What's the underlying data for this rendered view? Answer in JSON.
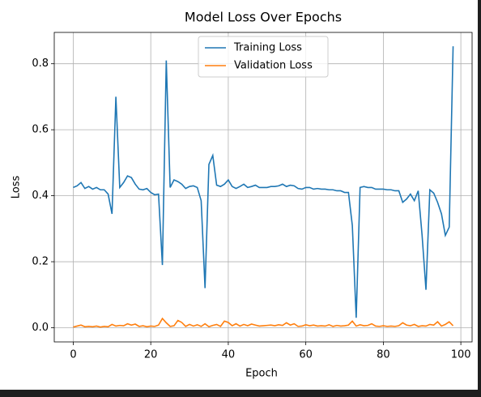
{
  "chart_data": {
    "type": "line",
    "title": "Model Loss Over Epochs",
    "xlabel": "Epoch",
    "ylabel": "Loss",
    "x": [
      0,
      1,
      2,
      3,
      4,
      5,
      6,
      7,
      8,
      9,
      10,
      11,
      12,
      13,
      14,
      15,
      16,
      17,
      18,
      19,
      20,
      21,
      22,
      23,
      24,
      25,
      26,
      27,
      28,
      29,
      30,
      31,
      32,
      33,
      34,
      35,
      36,
      37,
      38,
      39,
      40,
      41,
      42,
      43,
      44,
      45,
      46,
      47,
      48,
      49,
      50,
      51,
      52,
      53,
      54,
      55,
      56,
      57,
      58,
      59,
      60,
      61,
      62,
      63,
      64,
      65,
      66,
      67,
      68,
      69,
      70,
      71,
      72,
      73,
      74,
      75,
      76,
      77,
      78,
      79,
      80,
      81,
      82,
      83,
      84,
      85,
      86,
      87,
      88,
      89,
      90,
      91,
      92,
      93,
      94,
      95,
      96,
      97,
      98
    ],
    "series": [
      {
        "name": "Training Loss",
        "color": "#1f77b4",
        "values": [
          0.425,
          0.43,
          0.44,
          0.422,
          0.428,
          0.42,
          0.425,
          0.418,
          0.418,
          0.405,
          0.345,
          0.7,
          0.425,
          0.44,
          0.46,
          0.455,
          0.435,
          0.42,
          0.418,
          0.422,
          0.41,
          0.403,
          0.405,
          0.19,
          0.81,
          0.425,
          0.448,
          0.443,
          0.435,
          0.422,
          0.428,
          0.43,
          0.425,
          0.385,
          0.12,
          0.495,
          0.522,
          0.432,
          0.428,
          0.435,
          0.448,
          0.428,
          0.422,
          0.428,
          0.435,
          0.425,
          0.428,
          0.432,
          0.425,
          0.425,
          0.425,
          0.428,
          0.428,
          0.43,
          0.435,
          0.428,
          0.432,
          0.43,
          0.422,
          0.42,
          0.425,
          0.425,
          0.42,
          0.422,
          0.42,
          0.42,
          0.418,
          0.418,
          0.415,
          0.415,
          0.41,
          0.41,
          0.31,
          0.03,
          0.425,
          0.428,
          0.425,
          0.425,
          0.42,
          0.42,
          0.42,
          0.418,
          0.418,
          0.415,
          0.415,
          0.38,
          0.39,
          0.405,
          0.385,
          0.415,
          0.28,
          0.115,
          0.418,
          0.408,
          0.38,
          0.345,
          0.28,
          0.305,
          0.853
        ]
      },
      {
        "name": "Validation Loss",
        "color": "#ff7f0e",
        "values": [
          0.002,
          0.005,
          0.008,
          0.003,
          0.004,
          0.003,
          0.005,
          0.002,
          0.004,
          0.003,
          0.01,
          0.005,
          0.007,
          0.006,
          0.012,
          0.008,
          0.011,
          0.004,
          0.006,
          0.003,
          0.005,
          0.004,
          0.008,
          0.028,
          0.015,
          0.004,
          0.006,
          0.022,
          0.016,
          0.004,
          0.01,
          0.005,
          0.009,
          0.004,
          0.012,
          0.003,
          0.007,
          0.01,
          0.004,
          0.02,
          0.016,
          0.006,
          0.012,
          0.005,
          0.01,
          0.006,
          0.011,
          0.008,
          0.005,
          0.006,
          0.007,
          0.008,
          0.006,
          0.009,
          0.007,
          0.015,
          0.008,
          0.012,
          0.004,
          0.005,
          0.009,
          0.006,
          0.008,
          0.005,
          0.006,
          0.005,
          0.009,
          0.004,
          0.007,
          0.005,
          0.006,
          0.008,
          0.02,
          0.005,
          0.009,
          0.006,
          0.007,
          0.012,
          0.005,
          0.004,
          0.006,
          0.004,
          0.005,
          0.004,
          0.006,
          0.015,
          0.008,
          0.006,
          0.01,
          0.004,
          0.006,
          0.005,
          0.01,
          0.008,
          0.018,
          0.005,
          0.01,
          0.018,
          0.006
        ]
      }
    ],
    "xlim": [
      -4.9,
      102.9
    ],
    "ylim": [
      -0.043,
      0.895
    ],
    "xticks": [
      0,
      20,
      40,
      60,
      80,
      100
    ],
    "yticks": [
      {
        "value": 0,
        "label": "0.0"
      },
      0.2,
      0.4,
      0.6,
      0.8
    ],
    "grid": true,
    "legend": "upper center"
  }
}
